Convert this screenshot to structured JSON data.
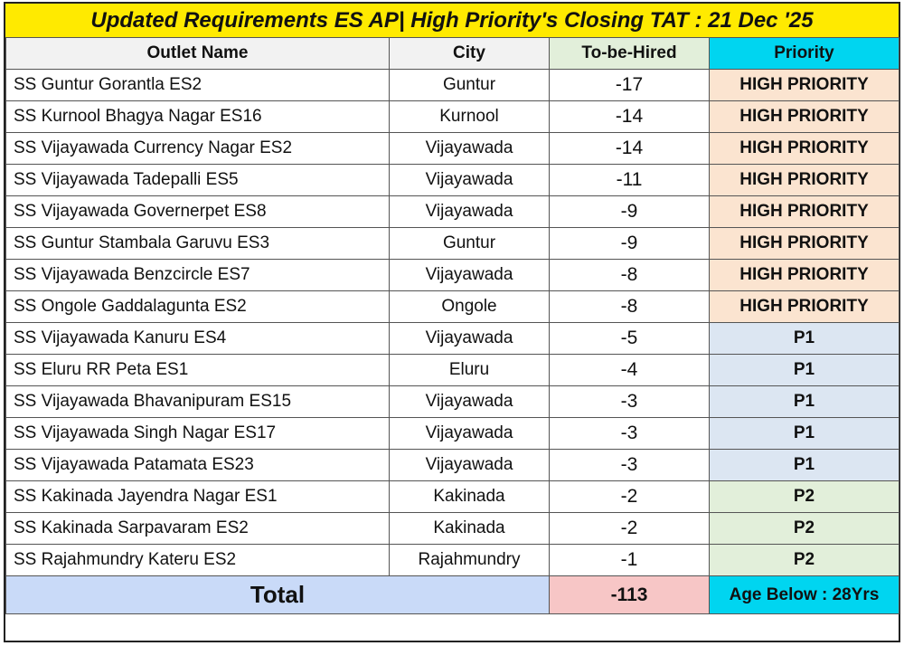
{
  "title": "Updated Requirements ES AP| High Priority's Closing TAT : 21 Dec '25",
  "headers": {
    "outlet": "Outlet Name",
    "city": "City",
    "hired": "To-be-Hired",
    "priority": "Priority"
  },
  "rows": [
    {
      "outlet": "SS Guntur Gorantla ES2",
      "city": "Guntur",
      "hired": "-17",
      "priority": "HIGH PRIORITY"
    },
    {
      "outlet": "SS Kurnool Bhagya Nagar ES16",
      "city": "Kurnool",
      "hired": "-14",
      "priority": "HIGH PRIORITY"
    },
    {
      "outlet": "SS Vijayawada Currency Nagar ES2",
      "city": "Vijayawada",
      "hired": "-14",
      "priority": "HIGH PRIORITY"
    },
    {
      "outlet": "SS Vijayawada Tadepalli ES5",
      "city": "Vijayawada",
      "hired": "-11",
      "priority": "HIGH PRIORITY"
    },
    {
      "outlet": "SS Vijayawada Governerpet ES8",
      "city": "Vijayawada",
      "hired": "-9",
      "priority": "HIGH PRIORITY"
    },
    {
      "outlet": "SS Guntur Stambala Garuvu ES3",
      "city": "Guntur",
      "hired": "-9",
      "priority": "HIGH PRIORITY"
    },
    {
      "outlet": "SS Vijayawada Benzcircle ES7",
      "city": "Vijayawada",
      "hired": "-8",
      "priority": "HIGH PRIORITY"
    },
    {
      "outlet": "SS Ongole Gaddalagunta ES2",
      "city": "Ongole",
      "hired": "-8",
      "priority": "HIGH PRIORITY"
    },
    {
      "outlet": "SS Vijayawada Kanuru ES4",
      "city": "Vijayawada",
      "hired": "-5",
      "priority": "P1"
    },
    {
      "outlet": "SS Eluru RR Peta ES1",
      "city": "Eluru",
      "hired": "-4",
      "priority": "P1"
    },
    {
      "outlet": "SS Vijayawada Bhavanipuram ES15",
      "city": "Vijayawada",
      "hired": "-3",
      "priority": "P1"
    },
    {
      "outlet": "SS Vijayawada Singh Nagar ES17",
      "city": "Vijayawada",
      "hired": "-3",
      "priority": "P1"
    },
    {
      "outlet": "SS Vijayawada Patamata ES23",
      "city": "Vijayawada",
      "hired": "-3",
      "priority": "P1"
    },
    {
      "outlet": "SS Kakinada Jayendra Nagar ES1",
      "city": "Kakinada",
      "hired": "-2",
      "priority": "P2"
    },
    {
      "outlet": "SS Kakinada Sarpavaram ES2",
      "city": "Kakinada",
      "hired": "-2",
      "priority": "P2"
    },
    {
      "outlet": "SS Rajahmundry Kateru ES2",
      "city": "Rajahmundry",
      "hired": "-1",
      "priority": "P2"
    }
  ],
  "footer": {
    "total_label": "Total",
    "total_value": "-113",
    "age_note": "Age Below : 28Yrs"
  },
  "colors": {
    "title_bg": "#ffea00",
    "priority_header_bg": "#00d5f0",
    "high_priority_bg": "#fbe4d0",
    "p1_bg": "#dce6f2",
    "p2_bg": "#e2efda",
    "total_label_bg": "#c9daf8",
    "total_value_bg": "#f7c6c6"
  }
}
